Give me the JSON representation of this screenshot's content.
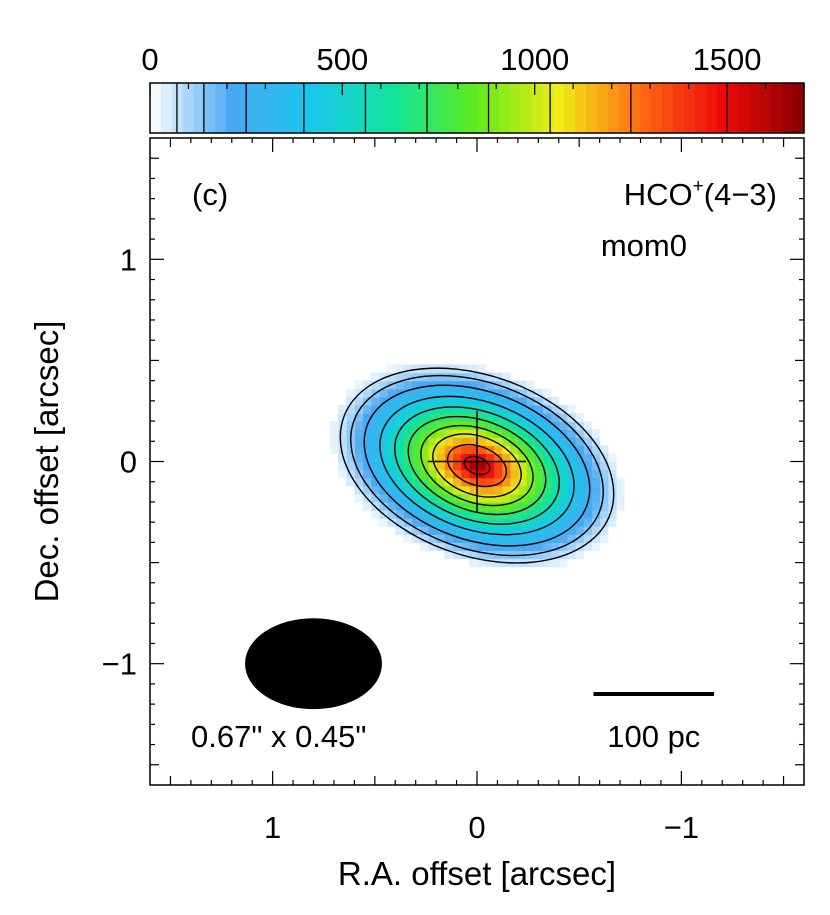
{
  "chart_data": {
    "type": "heatmap",
    "panel_label": "(c)",
    "title_line1_main": "HCO",
    "title_line1_sup": "+",
    "title_line1_tail": "(4−3)",
    "title_line2": "mom0",
    "xlabel": "R.A. offset [arcsec]",
    "ylabel": "Dec. offset [arcsec]",
    "xlim": [
      1.6,
      -1.6
    ],
    "ylim": [
      -1.6,
      1.6
    ],
    "xticks": [
      1,
      0,
      -1
    ],
    "xtick_labels": [
      "1",
      "0",
      "−1"
    ],
    "yticks": [
      1,
      0,
      -1
    ],
    "ytick_labels": [
      "1",
      "0",
      "−1"
    ],
    "colorbar": {
      "range": [
        0,
        1700
      ],
      "ticks": [
        0,
        500,
        1000,
        1500
      ],
      "tick_labels": [
        "0",
        "500",
        "1000",
        "1500"
      ]
    },
    "colormap_stops": [
      "#ffffff",
      "#4aa8f2",
      "#18c8ea",
      "#12e49a",
      "#62ea1c",
      "#f0ec16",
      "#ff6a14",
      "#ee0a0a",
      "#880000"
    ],
    "peak_intensity": 1700,
    "source": {
      "center": [
        0.0,
        -0.02
      ],
      "major_axis_radius": 0.78,
      "minor_axis_radius": 0.5,
      "position_angle_deg": 20
    },
    "contour_levels": [
      70,
      140,
      250,
      400,
      560,
      720,
      880,
      1040,
      1250,
      1500
    ],
    "beam": {
      "label": "0.67\" x 0.45\"",
      "center": [
        0.8,
        -1.0
      ],
      "major": 0.67,
      "minor": 0.45
    },
    "scalebar": {
      "label": "100 pc",
      "x_from": -0.57,
      "x_to": -1.16,
      "y": -1.15
    },
    "center_cross_halfwidth": [
      0.24,
      0.25
    ]
  }
}
